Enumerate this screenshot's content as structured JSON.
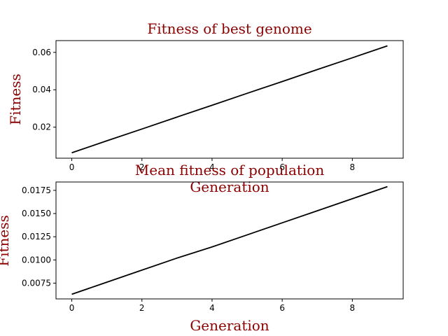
{
  "chart_data": [
    {
      "type": "line",
      "title": "Fitness of best genome",
      "xlabel": "Generation",
      "ylabel": "Fitness",
      "x": [
        0,
        1,
        2,
        3,
        4,
        5,
        6,
        7,
        8,
        9
      ],
      "series": [
        {
          "values": [
            0.0063,
            0.0127,
            0.019,
            0.0254,
            0.0317,
            0.0381,
            0.0444,
            0.0508,
            0.0571,
            0.0635
          ]
        }
      ],
      "xlim": [
        -0.45,
        9.45
      ],
      "ylim": [
        0.0034,
        0.0663
      ],
      "xticks": [
        0,
        2,
        4,
        6,
        8
      ],
      "xtick_labels": [
        "0",
        "2",
        "4",
        "6",
        "8"
      ],
      "yticks": [
        0.02,
        0.04,
        0.06
      ],
      "ytick_labels": [
        "0.02",
        "0.04",
        "0.06"
      ],
      "grid": false,
      "line_color": "#000000",
      "label_color": "#8b0000"
    },
    {
      "type": "line",
      "title": "Mean fitness of population",
      "xlabel": "Generation",
      "ylabel": "Fitness",
      "x": [
        0,
        1,
        2,
        3,
        4,
        5,
        6,
        7,
        8,
        9
      ],
      "series": [
        {
          "values": [
            0.0063,
            0.0076,
            0.0089,
            0.0102,
            0.0114,
            0.0127,
            0.014,
            0.0153,
            0.0166,
            0.0179
          ]
        }
      ],
      "xlim": [
        -0.45,
        9.45
      ],
      "ylim": [
        0.0058,
        0.0184
      ],
      "xticks": [
        0,
        2,
        4,
        6,
        8
      ],
      "xtick_labels": [
        "0",
        "2",
        "4",
        "6",
        "8"
      ],
      "yticks": [
        0.0075,
        0.01,
        0.0125,
        0.015,
        0.0175
      ],
      "ytick_labels": [
        "0.0075",
        "0.0100",
        "0.0125",
        "0.0150",
        "0.0175"
      ],
      "grid": false,
      "line_color": "#000000",
      "label_color": "#8b0000"
    }
  ]
}
